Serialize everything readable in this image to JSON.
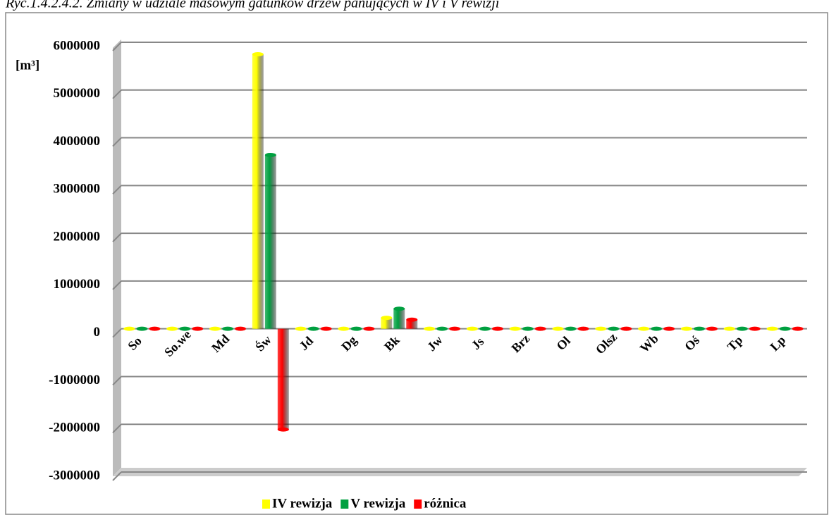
{
  "chart_data": {
    "type": "bar",
    "title": "Ryc.1.4.2.4.2. Zmiany w udziale masowym gatunków drzew panujących w IV i V rewizji",
    "y_label": "[m³]",
    "categories": [
      "So",
      "So.we",
      "Md",
      "Św",
      "Jd",
      "Dg",
      "Bk",
      "Jw",
      "Js",
      "Brz",
      "Ol",
      "Olsz",
      "Wb",
      "Oś",
      "Tp",
      "Lp"
    ],
    "series": [
      {
        "name": "IV rewizja",
        "color": "#ffff00",
        "values": [
          0,
          0,
          0,
          5750000,
          0,
          0,
          230000,
          0,
          0,
          0,
          0,
          0,
          0,
          0,
          0,
          0
        ]
      },
      {
        "name": "V rewizja",
        "color": "#00a040",
        "values": [
          0,
          0,
          0,
          3640000,
          0,
          0,
          420000,
          0,
          0,
          0,
          0,
          0,
          0,
          0,
          0,
          0
        ]
      },
      {
        "name": "różnica",
        "color": "#ff0000",
        "values": [
          0,
          0,
          0,
          -2110000,
          0,
          0,
          190000,
          0,
          0,
          0,
          0,
          0,
          0,
          0,
          0,
          0
        ]
      }
    ],
    "ylim": [
      -3000000,
      6000000
    ],
    "yticks": [
      -3000000,
      -2000000,
      -1000000,
      0,
      1000000,
      2000000,
      3000000,
      4000000,
      5000000,
      6000000
    ],
    "grid": true,
    "legend": "bottom"
  }
}
